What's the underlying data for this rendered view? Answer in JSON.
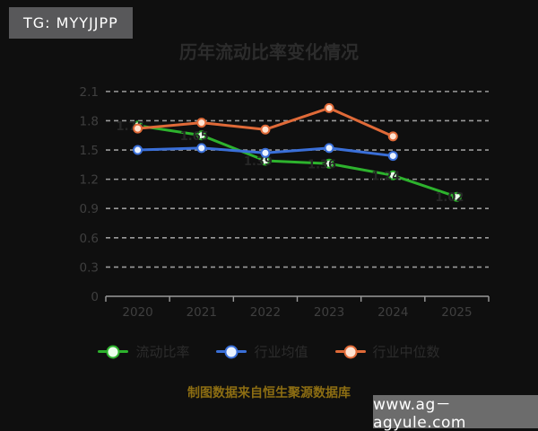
{
  "badge": {
    "label": "TG: MYYJJPP"
  },
  "title": "历年流动比率变化情况",
  "chart_data": {
    "type": "line",
    "title": "历年流动比率变化情况",
    "categories": [
      "2020",
      "2021",
      "2022",
      "2023",
      "2024",
      "2025"
    ],
    "yticks": [
      0,
      0.3,
      0.6,
      0.9,
      1.2,
      1.5,
      1.8,
      2.1
    ],
    "ylim": [
      0,
      2.2
    ],
    "grid": "horizontal-dashed",
    "legend_position": "bottom",
    "series": [
      {
        "name": "流动比率",
        "color": "#2db22d",
        "marker_fill": "#eaffea",
        "show_labels": true,
        "values": [
          1.75,
          1.65,
          1.39,
          1.36,
          1.24,
          1.02
        ]
      },
      {
        "name": "行业均值",
        "color": "#3a6fd8",
        "marker_fill": "#eaf2ff",
        "show_labels": false,
        "values": [
          1.5,
          1.52,
          1.47,
          1.52,
          1.44,
          null
        ]
      },
      {
        "name": "行业中位数",
        "color": "#e06a38",
        "marker_fill": "#ffe3d1",
        "show_labels": false,
        "values": [
          1.72,
          1.78,
          1.71,
          1.93,
          1.64,
          null
        ]
      }
    ],
    "colors": {
      "grid": "#9a9a9a",
      "axis": "#9a9a9a",
      "tick_label": "#3f3f3f",
      "data_label": "#262626"
    }
  },
  "footer": {
    "note": "制图数据来自恒生聚源数据库"
  },
  "watermark": {
    "text": "www.ag－agyule.com"
  }
}
